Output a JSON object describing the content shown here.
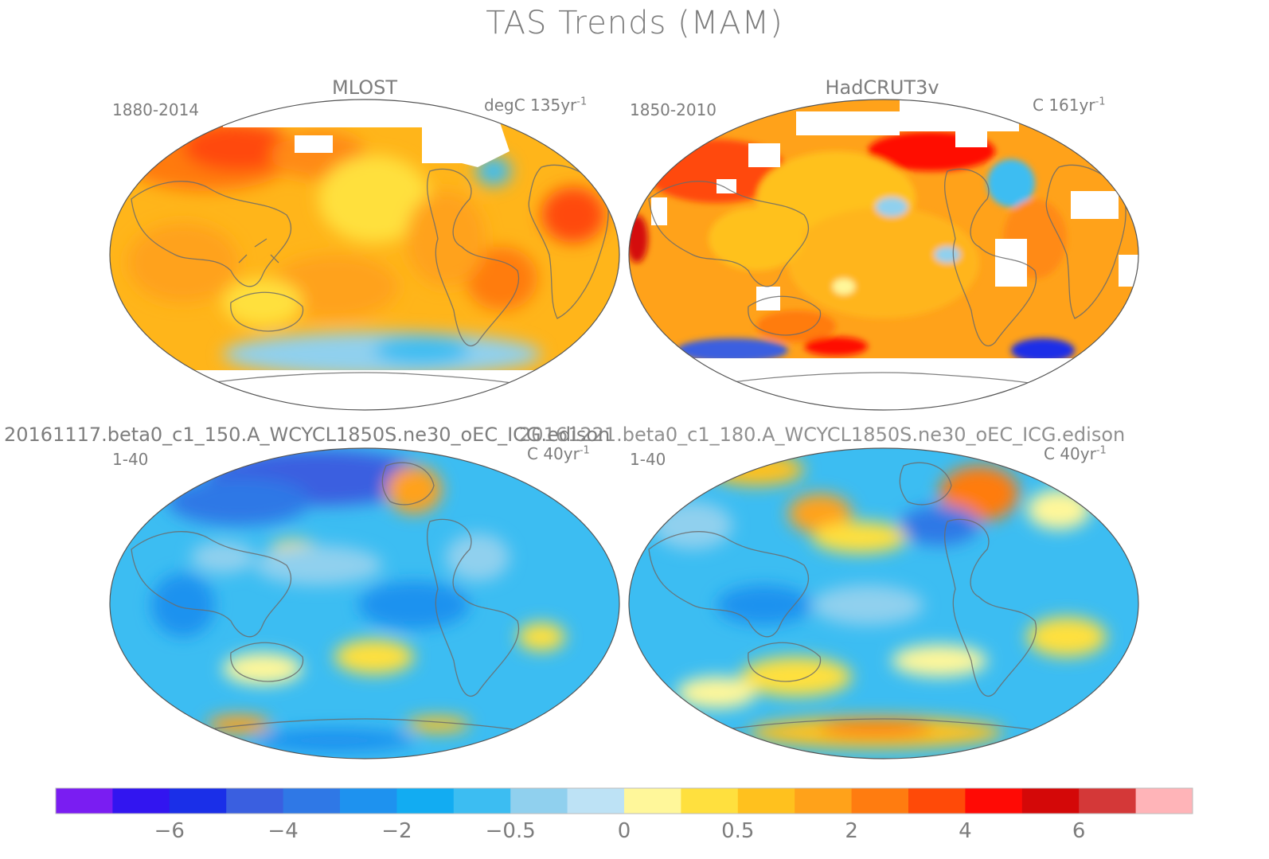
{
  "title": "TAS Trends (MAM)",
  "panels": [
    {
      "name": "MLOST",
      "period": "1880-2014",
      "units_prefix": "degC 135yr",
      "units_sup": "-1",
      "scheme": "mlost"
    },
    {
      "name": "HadCRUT3v",
      "period": "1850-2010",
      "units_prefix": "C 161yr",
      "units_sup": "-1",
      "scheme": "hadcrut"
    },
    {
      "name": "20161117.beta0_c1_150.A_WCYCL1850S.ne30_oEC_ICG.edison",
      "period": "1-40",
      "units_prefix": "C 40yr",
      "units_sup": "-1",
      "scheme": "model1"
    },
    {
      "name": "20161221.beta0_c1_180.A_WCYCL1850S.ne30_oEC_ICG.edison",
      "period": "1-40",
      "units_prefix": "C 40yr",
      "units_sup": "-1",
      "scheme": "model2"
    }
  ],
  "colorbar": {
    "colors": [
      "#7a1df2",
      "#3215f0",
      "#1a2fe8",
      "#3a5fe0",
      "#2f78e6",
      "#1e92ef",
      "#12acf2",
      "#3cbdf2",
      "#90d0ee",
      "#bde2f5",
      "#fff79a",
      "#ffe03e",
      "#ffc11e",
      "#ffa21a",
      "#ff7c10",
      "#ff4a08",
      "#ff0a05",
      "#d40808",
      "#d43838",
      "#ffb4b8"
    ],
    "labels": [
      "-6",
      "-4",
      "-2",
      "-0.5",
      "0",
      "0.5",
      "2",
      "4",
      "6"
    ]
  }
}
